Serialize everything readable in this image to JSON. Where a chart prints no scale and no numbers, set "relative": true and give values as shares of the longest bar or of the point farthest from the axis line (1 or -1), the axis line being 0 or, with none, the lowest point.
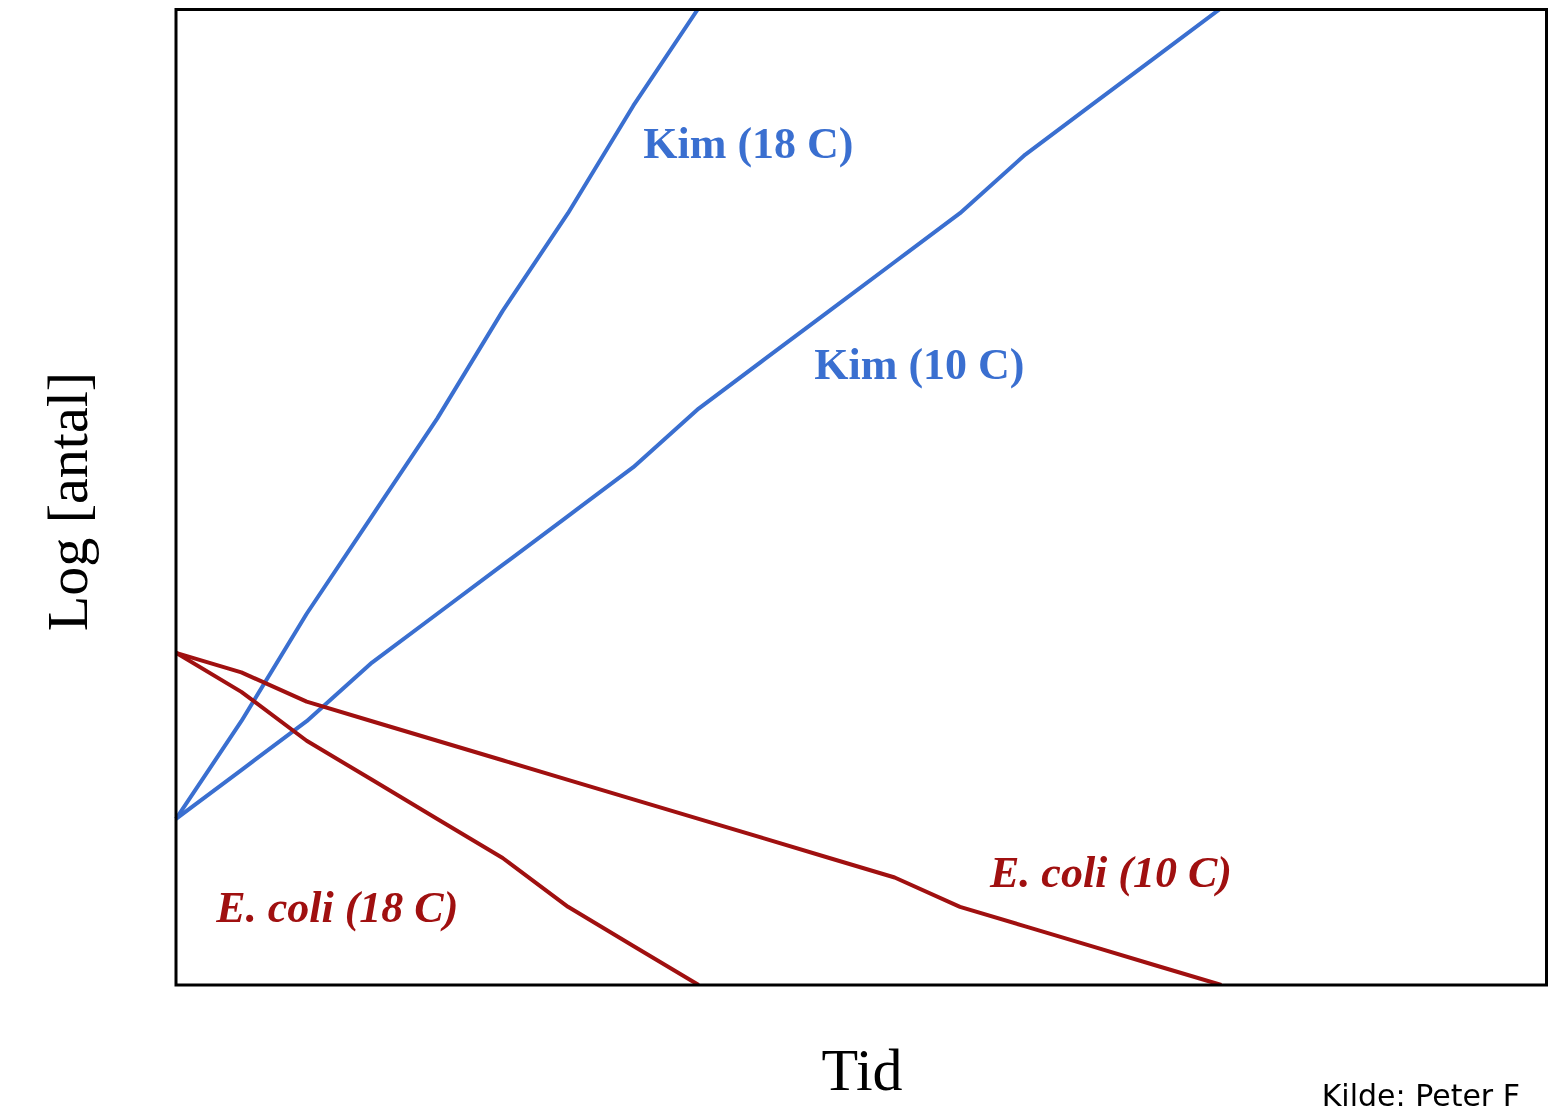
{
  "chart_data": {
    "type": "line",
    "relative": true,
    "xlabel": "Tid",
    "ylabel": "Log [antal]",
    "categories": [
      null,
      null,
      null,
      null,
      null,
      null,
      null,
      null,
      null,
      null,
      null,
      null,
      null,
      null,
      null,
      null,
      null,
      null,
      null,
      null,
      null,
      null
    ],
    "series": [
      {
        "name": "Kim (18 C)",
        "color": "#3a6fd0",
        "values": [
          0.17,
          0.27,
          0.38,
          0.48,
          0.58,
          0.69,
          0.79,
          0.9,
          1.0,
          null,
          null,
          null,
          null,
          null,
          null,
          null,
          null,
          null,
          null,
          null,
          null,
          null
        ]
      },
      {
        "name": "Kim (10 C)",
        "color": "#3a6fd0",
        "values": [
          0.17,
          0.22,
          0.27,
          0.33,
          0.38,
          0.43,
          0.48,
          0.53,
          0.59,
          0.64,
          0.69,
          0.74,
          0.79,
          0.85,
          0.9,
          0.95,
          1.0,
          null,
          null,
          null,
          null,
          null
        ]
      },
      {
        "name": "E. coli (18 C)",
        "color": "#a01010",
        "values": [
          0.34,
          0.3,
          0.25,
          0.21,
          0.17,
          0.13,
          0.08,
          0.04,
          0,
          null,
          null,
          null,
          null,
          null,
          null,
          null,
          null,
          null,
          null,
          null,
          null,
          null
        ]
      },
      {
        "name": "E. coli (10 C)",
        "color": "#a01010",
        "values": [
          0.34,
          0.32,
          0.29,
          0.27,
          0.25,
          0.23,
          0.21,
          0.19,
          0.17,
          0.15,
          0.13,
          0.11,
          0.08,
          0.06,
          0.04,
          0.02,
          0,
          null,
          null,
          null,
          null,
          null
        ]
      }
    ],
    "annotations": [
      "Kilde: Peter F"
    ]
  }
}
